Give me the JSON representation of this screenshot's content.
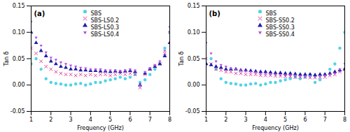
{
  "chart_data": [
    {
      "type": "scatter",
      "annotation": "(a)",
      "x_label": "Frequency (GHz)",
      "y_label": "Tan δ",
      "xlim": [
        1,
        8
      ],
      "ylim": [
        -0.05,
        0.15
      ],
      "xticks": [
        1,
        2,
        3,
        4,
        5,
        6,
        7,
        8
      ],
      "yticks": [
        -0.05,
        {
          "value": 0,
          "label": "0.00"
        },
        0.05,
        {
          "value": 0.1,
          "label": "0.10"
        },
        0.15
      ],
      "legend": "top",
      "x": [
        1,
        1.25,
        1.5,
        1.75,
        2,
        2.25,
        2.5,
        2.75,
        3,
        3.25,
        3.5,
        3.75,
        4,
        4.25,
        4.5,
        4.75,
        5,
        5.25,
        5.5,
        5.75,
        6,
        6.25,
        6.5,
        6.75,
        7,
        7.25,
        7.5,
        7.75,
        8
      ],
      "series": [
        {
          "name": "SBS",
          "color": "#4fd3e8",
          "marker": "circle",
          "values": [
            0.04,
            0.05,
            0.03,
            0.012,
            0.005,
            0.003,
            0.002,
            0.0,
            0.0,
            0.002,
            0.003,
            0.0,
            0.002,
            0.005,
            0.005,
            0.008,
            0.01,
            0.012,
            0.015,
            0.012,
            0.015,
            0.02,
            0.005,
            0.01,
            0.02,
            0.03,
            0.04,
            0.07,
            0.1
          ]
        },
        {
          "name": "SBS-LS0.2",
          "color": "#e0449a",
          "marker": "x",
          "values": [
            0.07,
            0.06,
            0.045,
            0.035,
            0.03,
            0.025,
            0.022,
            0.02,
            0.02,
            0.018,
            0.02,
            0.018,
            0.02,
            0.018,
            0.02,
            0.02,
            0.018,
            0.02,
            0.022,
            0.02,
            0.022,
            0.02,
            -0.005,
            0.02,
            0.03,
            0.035,
            0.04,
            0.06,
            0.1
          ]
        },
        {
          "name": "SBS-LS0.3",
          "color": "#1f1fa8",
          "marker": "triangle-up",
          "values": [
            0.1,
            0.08,
            0.065,
            0.055,
            0.045,
            0.04,
            0.035,
            0.033,
            0.03,
            0.03,
            0.028,
            0.028,
            0.027,
            0.027,
            0.026,
            0.026,
            0.025,
            0.026,
            0.025,
            0.026,
            0.027,
            0.025,
            0.0,
            0.022,
            0.03,
            0.035,
            0.04,
            0.055,
            0.08
          ]
        },
        {
          "name": "SBS-LS0.4",
          "color": "#b44fe0",
          "marker": "triangle-down",
          "values": [
            0.12,
            0.09,
            0.075,
            0.062,
            0.052,
            0.048,
            0.043,
            0.04,
            0.037,
            0.035,
            0.033,
            0.032,
            0.03,
            0.03,
            0.03,
            0.028,
            0.028,
            0.028,
            0.027,
            0.028,
            0.03,
            0.028,
            0.0,
            0.025,
            0.032,
            0.038,
            0.045,
            0.065,
            0.11
          ]
        }
      ]
    },
    {
      "type": "scatter",
      "annotation": "(b)",
      "x_label": "Frequency (GHz)",
      "y_label": "Tan δ",
      "xlim": [
        1,
        8
      ],
      "ylim": [
        -0.05,
        0.15
      ],
      "xticks": [
        1,
        2,
        3,
        4,
        5,
        6,
        7,
        8
      ],
      "yticks": [
        -0.05,
        {
          "value": 0,
          "label": "0.00"
        },
        0.05,
        {
          "value": 0.1,
          "label": "0.10"
        },
        0.15
      ],
      "legend": "top",
      "x": [
        1,
        1.25,
        1.5,
        1.75,
        2,
        2.25,
        2.5,
        2.75,
        3,
        3.25,
        3.5,
        3.75,
        4,
        4.25,
        4.5,
        4.75,
        5,
        5.25,
        5.5,
        5.75,
        6,
        6.25,
        6.5,
        6.75,
        7,
        7.25,
        7.5,
        7.75,
        8
      ],
      "series": [
        {
          "name": "SBS",
          "color": "#4fd3e8",
          "marker": "circle",
          "values": [
            0.04,
            0.05,
            0.03,
            0.012,
            0.005,
            0.003,
            0.002,
            0.0,
            0.0,
            0.002,
            0.003,
            0.0,
            0.002,
            0.005,
            0.005,
            0.008,
            0.01,
            0.012,
            0.015,
            0.012,
            0.015,
            0.02,
            0.005,
            0.01,
            0.02,
            0.03,
            0.04,
            0.07,
            0.1
          ]
        },
        {
          "name": "SBS-SS0.2",
          "color": "#e0449a",
          "marker": "x",
          "values": [
            0.05,
            0.04,
            0.03,
            0.028,
            0.025,
            0.025,
            0.022,
            0.022,
            0.02,
            0.02,
            0.02,
            0.018,
            0.018,
            0.018,
            0.017,
            0.017,
            0.016,
            0.016,
            0.015,
            0.015,
            0.015,
            0.014,
            0.014,
            0.015,
            0.015,
            0.018,
            0.02,
            0.025,
            0.03
          ]
        },
        {
          "name": "SBS-SS0.3",
          "color": "#1f1fa8",
          "marker": "triangle-up",
          "values": [
            0.04,
            0.038,
            0.035,
            0.033,
            0.03,
            0.03,
            0.03,
            0.028,
            0.028,
            0.027,
            0.026,
            0.025,
            0.025,
            0.024,
            0.023,
            0.023,
            0.022,
            0.022,
            0.021,
            0.02,
            0.02,
            0.02,
            0.019,
            0.02,
            0.02,
            0.022,
            0.025,
            0.028,
            0.03
          ]
        },
        {
          "name": "SBS-SS0.4",
          "color": "#b44fe0",
          "marker": "triangle-down",
          "values": [
            0.08,
            0.06,
            0.045,
            0.038,
            0.035,
            0.032,
            0.03,
            0.028,
            0.026,
            0.025,
            0.024,
            0.022,
            0.022,
            0.02,
            0.02,
            0.019,
            0.018,
            0.018,
            0.017,
            0.016,
            0.016,
            0.015,
            0.015,
            0.016,
            0.018,
            0.02,
            0.022,
            0.03,
            0.04
          ]
        }
      ]
    }
  ]
}
